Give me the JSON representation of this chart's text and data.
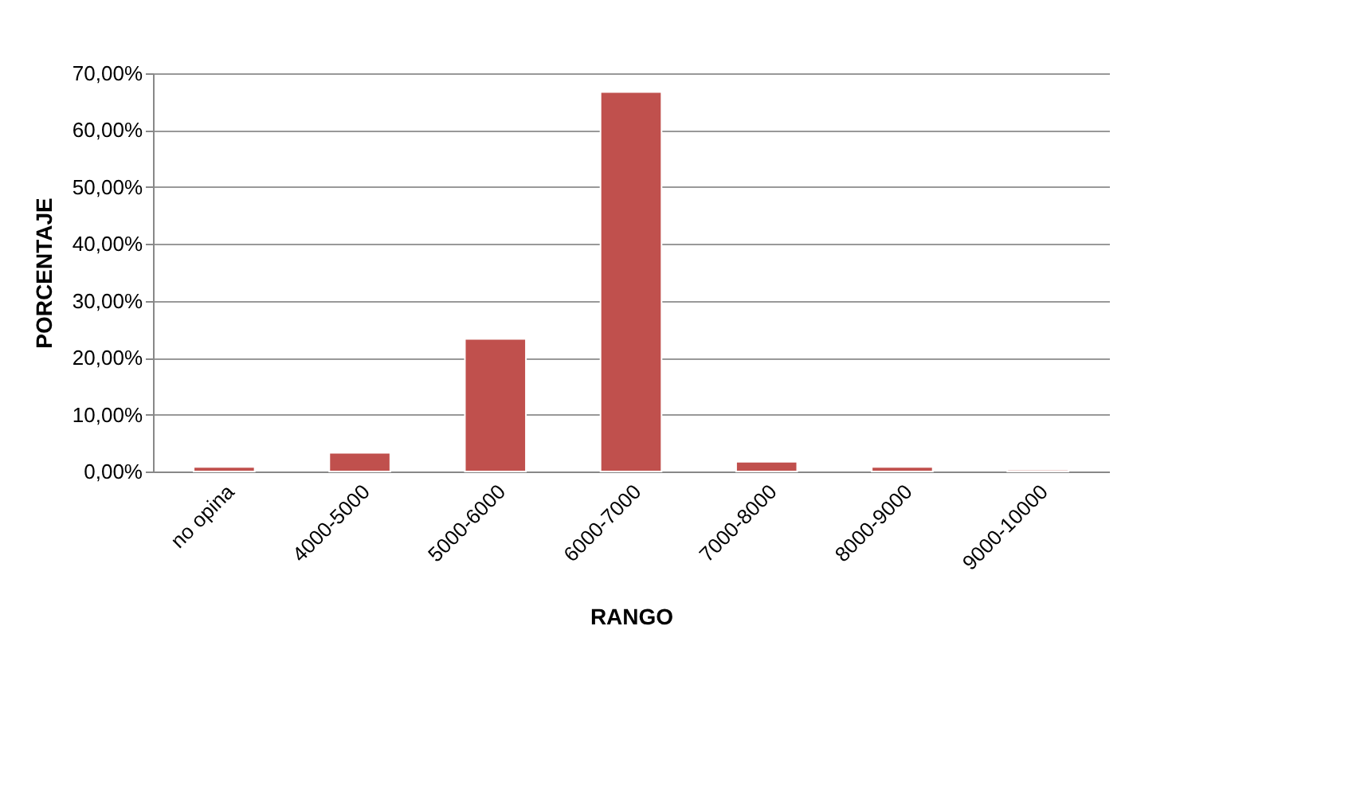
{
  "chart_data": {
    "type": "bar",
    "xlabel": "RANGO",
    "ylabel": "PORCENTAJE",
    "categories": [
      "no opina",
      "4000-5000",
      "5000-6000",
      "6000-7000",
      "7000-8000",
      "8000-9000",
      "9000-10000"
    ],
    "values": [
      0.8,
      3.3,
      23.3,
      66.7,
      1.7,
      0.8,
      0.3
    ],
    "color": "#c0504d",
    "ylim": [
      0,
      70
    ],
    "yticks": [
      {
        "value": 0,
        "label": "0,00%"
      },
      {
        "value": 10,
        "label": "10,00%"
      },
      {
        "value": 20,
        "label": "20,00%"
      },
      {
        "value": 30,
        "label": "30,00%"
      },
      {
        "value": 40,
        "label": "40,00%"
      },
      {
        "value": 50,
        "label": "50,00%"
      },
      {
        "value": 60,
        "label": "60,00%"
      },
      {
        "value": 70,
        "label": "70,00%"
      }
    ],
    "grid": "y"
  }
}
